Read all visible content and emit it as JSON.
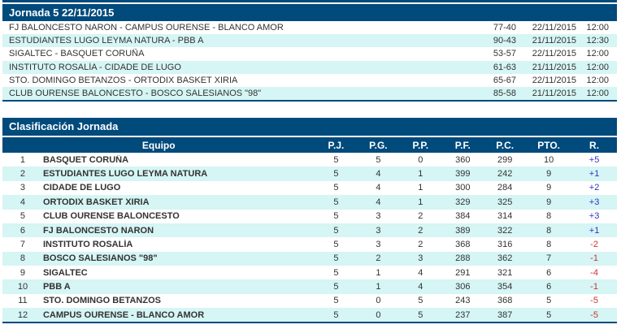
{
  "results": {
    "title": "Jornada 5 22/11/2015",
    "matches": [
      {
        "teams": "FJ BALONCESTO NARON - CAMPUS OURENSE - BLANCO AMOR",
        "score": "77-40",
        "date": "22/11/2015",
        "time": "12:00"
      },
      {
        "teams": "ESTUDIANTES LUGO LEYMA NATURA - PBB A",
        "score": "90-43",
        "date": "21/11/2015",
        "time": "12:30"
      },
      {
        "teams": "SIGALTEC - BASQUET CORUÑA",
        "score": "53-57",
        "date": "22/11/2015",
        "time": "12:00"
      },
      {
        "teams": "INSTITUTO ROSALÍA - CIDADE DE LUGO",
        "score": "61-63",
        "date": "21/11/2015",
        "time": "12:00"
      },
      {
        "teams": "STO. DOMINGO BETANZOS - ORTODIX BASKET XIRIA",
        "score": "65-67",
        "date": "22/11/2015",
        "time": "12:00"
      },
      {
        "teams": "CLUB OURENSE BALONCESTO - BOSCO SALESIANOS \"98\"",
        "score": "85-58",
        "date": "21/11/2015",
        "time": "12:00"
      }
    ]
  },
  "standings": {
    "title": "Clasificación Jornada",
    "columns": {
      "equipo": "Equipo",
      "pj": "P.J.",
      "pg": "P.G.",
      "pp": "P.P.",
      "pf": "P.F.",
      "pc": "P.C.",
      "pto": "PTO.",
      "r": "R."
    },
    "rows": [
      {
        "pos": "1",
        "team": "BASQUET CORUÑA",
        "pj": "5",
        "pg": "5",
        "pp": "0",
        "pf": "360",
        "pc": "299",
        "pto": "10",
        "r": "+5"
      },
      {
        "pos": "2",
        "team": "ESTUDIANTES LUGO LEYMA NATURA",
        "pj": "5",
        "pg": "4",
        "pp": "1",
        "pf": "399",
        "pc": "242",
        "pto": "9",
        "r": "+1"
      },
      {
        "pos": "3",
        "team": "CIDADE DE LUGO",
        "pj": "5",
        "pg": "4",
        "pp": "1",
        "pf": "300",
        "pc": "284",
        "pto": "9",
        "r": "+2"
      },
      {
        "pos": "4",
        "team": "ORTODIX BASKET XIRIA",
        "pj": "5",
        "pg": "4",
        "pp": "1",
        "pf": "329",
        "pc": "325",
        "pto": "9",
        "r": "+3"
      },
      {
        "pos": "5",
        "team": "CLUB OURENSE BALONCESTO",
        "pj": "5",
        "pg": "3",
        "pp": "2",
        "pf": "384",
        "pc": "314",
        "pto": "8",
        "r": "+3"
      },
      {
        "pos": "6",
        "team": "FJ BALONCESTO NARON",
        "pj": "5",
        "pg": "3",
        "pp": "2",
        "pf": "389",
        "pc": "322",
        "pto": "8",
        "r": "+1"
      },
      {
        "pos": "7",
        "team": "INSTITUTO ROSALÍA",
        "pj": "5",
        "pg": "3",
        "pp": "2",
        "pf": "368",
        "pc": "316",
        "pto": "8",
        "r": "-2"
      },
      {
        "pos": "8",
        "team": "BOSCO SALESIANOS \"98\"",
        "pj": "5",
        "pg": "2",
        "pp": "3",
        "pf": "288",
        "pc": "362",
        "pto": "7",
        "r": "-1"
      },
      {
        "pos": "9",
        "team": "SIGALTEC",
        "pj": "5",
        "pg": "1",
        "pp": "4",
        "pf": "291",
        "pc": "321",
        "pto": "6",
        "r": "-4"
      },
      {
        "pos": "10",
        "team": "PBB A",
        "pj": "5",
        "pg": "1",
        "pp": "4",
        "pf": "306",
        "pc": "354",
        "pto": "6",
        "r": "-1"
      },
      {
        "pos": "11",
        "team": "STO. DOMINGO BETANZOS",
        "pj": "5",
        "pg": "0",
        "pp": "5",
        "pf": "243",
        "pc": "368",
        "pto": "5",
        "r": "-5"
      },
      {
        "pos": "12",
        "team": "CAMPUS OURENSE - BLANCO AMOR",
        "pj": "5",
        "pg": "0",
        "pp": "5",
        "pf": "237",
        "pc": "387",
        "pto": "5",
        "r": "-5"
      }
    ]
  },
  "colors": {
    "header_navy": "#004a7c",
    "row_alt_cyan": "#d6f5f5",
    "text": "#333333",
    "diff_positive": "#3333cc",
    "diff_negative": "#cc3333"
  }
}
